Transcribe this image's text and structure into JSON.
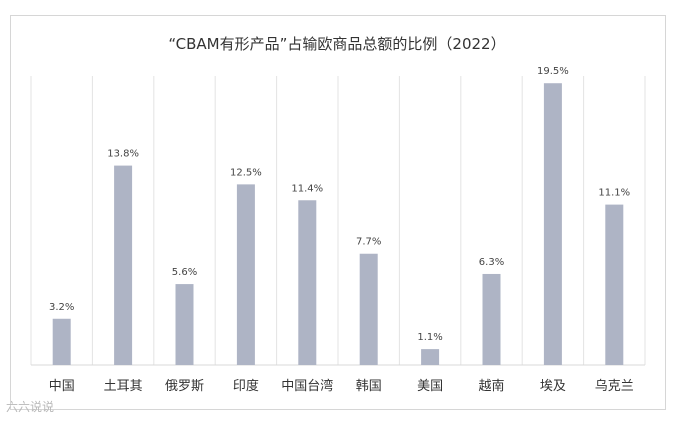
{
  "chart_data": {
    "type": "bar",
    "title": "“CBAM有形产品”占输欧商品总额的比例（2022）",
    "categories": [
      "中国",
      "土耳其",
      "俄罗斯",
      "印度",
      "中国台湾",
      "韩国",
      "美国",
      "越南",
      "埃及",
      "乌克兰"
    ],
    "values": [
      3.2,
      13.8,
      5.6,
      12.5,
      11.4,
      7.7,
      1.1,
      6.3,
      19.5,
      11.1
    ],
    "value_labels": [
      "3.2%",
      "13.8%",
      "5.6%",
      "12.5%",
      "11.4%",
      "7.7%",
      "1.1%",
      "6.3%",
      "19.5%",
      "11.1%"
    ],
    "unit": "%",
    "ylim": [
      0,
      20
    ],
    "grid": "vertical separators",
    "bar_color": "#aeb4c5",
    "legend": "none"
  },
  "watermark": "六六说说"
}
